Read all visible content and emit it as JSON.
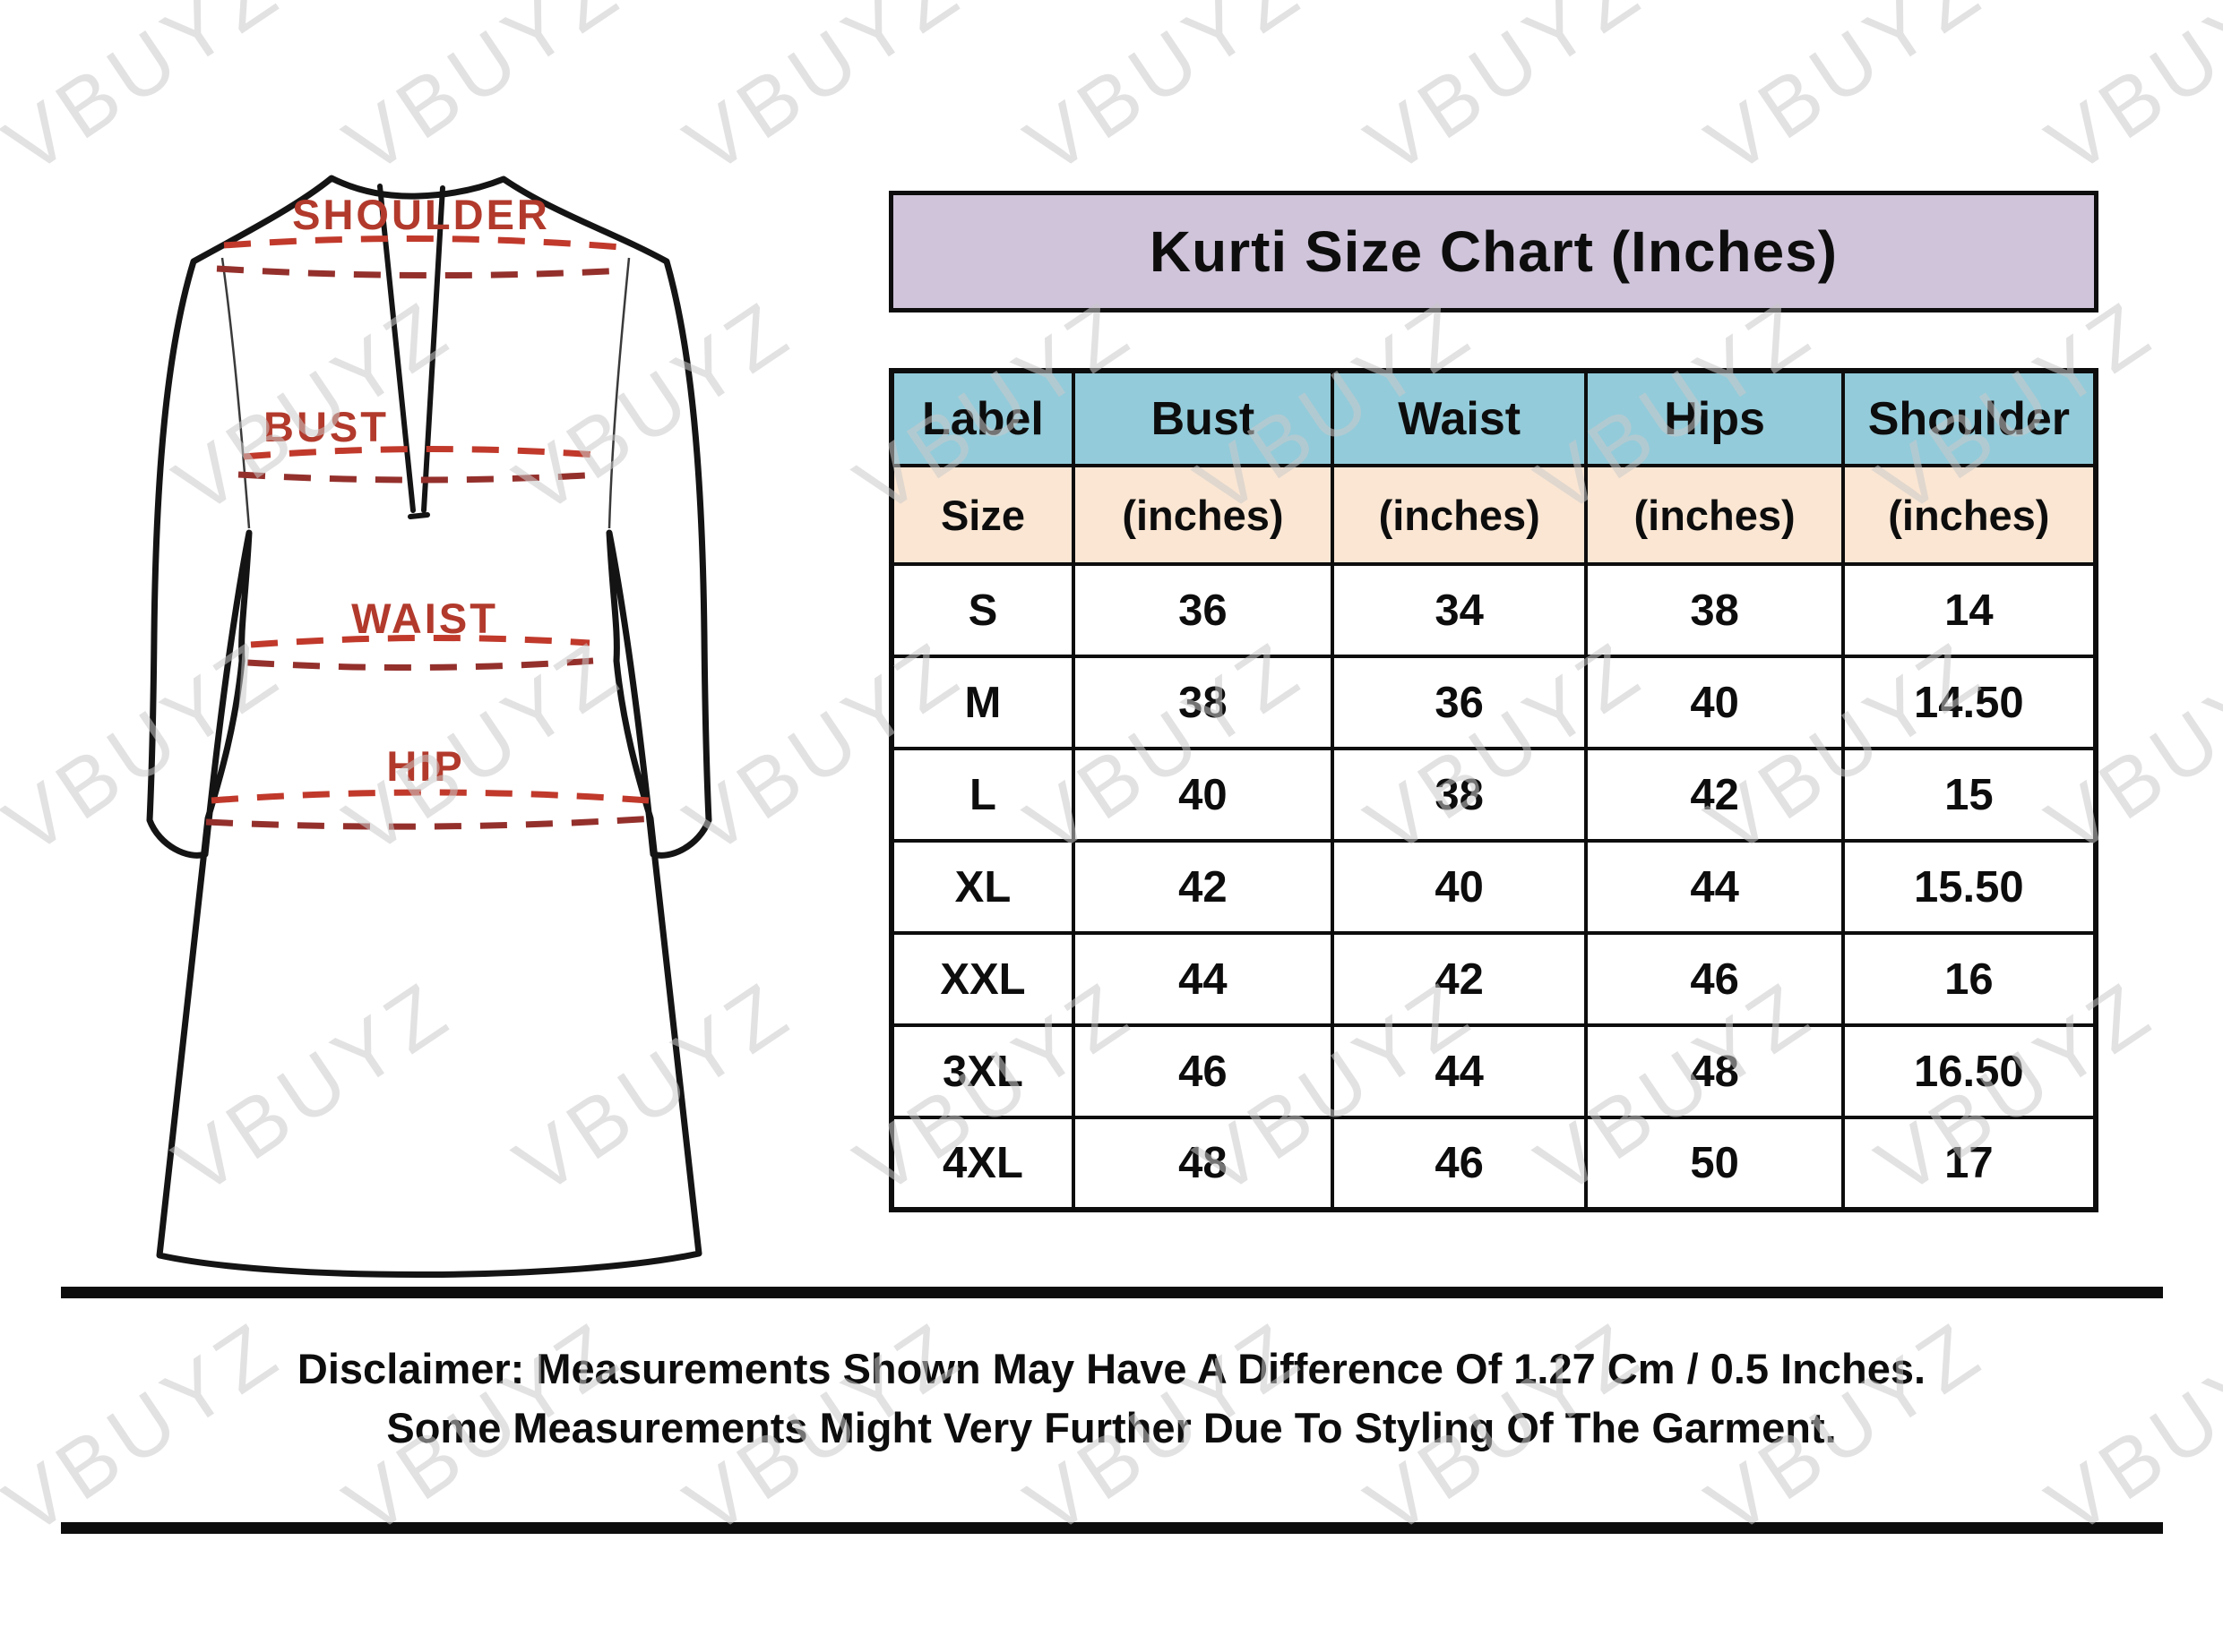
{
  "watermark": {
    "text": "VBUYZ"
  },
  "header": {
    "title": "Kurti Size Chart (Inches)"
  },
  "diagram": {
    "labels": {
      "shoulder": "SHOULDER",
      "bust": "BUST",
      "waist": "WAIST",
      "hip": "HIP"
    }
  },
  "chart_data": {
    "type": "table",
    "title": "Kurti Size Chart (Inches)",
    "columns": [
      "Label",
      "Bust",
      "Waist",
      "Hips",
      "Shoulder"
    ],
    "subheader": [
      "Size",
      "(inches)",
      "(inches)",
      "(inches)",
      "(inches)"
    ],
    "rows": [
      [
        "S",
        "36",
        "34",
        "38",
        "14"
      ],
      [
        "M",
        "38",
        "36",
        "40",
        "14.50"
      ],
      [
        "L",
        "40",
        "38",
        "42",
        "15"
      ],
      [
        "XL",
        "42",
        "40",
        "44",
        "15.50"
      ],
      [
        "XXL",
        "44",
        "42",
        "46",
        "16"
      ],
      [
        "3XL",
        "46",
        "44",
        "48",
        "16.50"
      ],
      [
        "4XL",
        "48",
        "46",
        "50",
        "17"
      ]
    ],
    "colors": {
      "title_bg": "#cfc4da",
      "header_bg": "#93cbda",
      "subheader_bg": "#fae6d3",
      "accent_red": "#b23a2c",
      "border": "#0d0d0d"
    },
    "legend_position": "none",
    "grid": true
  },
  "disclaimer": {
    "line1": "Disclaimer: Measurements Shown May Have A Difference Of 1.27 Cm / 0.5 Inches.",
    "line2": "Some Measurements Might Very Further Due To Styling Of The Garment."
  }
}
